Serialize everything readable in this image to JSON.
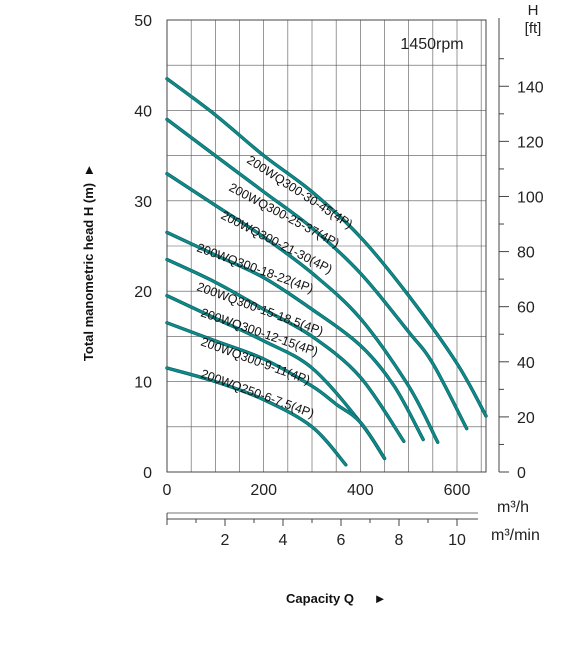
{
  "chart_data": {
    "type": "line",
    "speed_label": "1450rpm",
    "ylabel": "Total manometric head H (m)",
    "xlabel": "Capacity Q",
    "y_left_ticks": [
      "0",
      "10",
      "20",
      "30",
      "40",
      "50"
    ],
    "y_left_range": [
      0,
      50
    ],
    "y_right_ticks": [
      "0",
      "20",
      "40",
      "60",
      "80",
      "100",
      "120",
      "140"
    ],
    "y_right_unit_top": "H",
    "y_right_unit_bottom": "[ft]",
    "x_ticks_m3h": [
      "0",
      "200",
      "400",
      "600"
    ],
    "x_range_m3h": [
      0,
      660
    ],
    "x_unit_m3h": "m³/h",
    "x_ticks_m3min": [
      "2",
      "4",
      "6",
      "8",
      "10"
    ],
    "x_unit_m3min": "m³/min",
    "grid": true,
    "series": [
      {
        "name": "200WQ300-30-45(4P)",
        "x": [
          0,
          100,
          200,
          300,
          400,
          500,
          600,
          660
        ],
        "y": [
          43.5,
          39.5,
          35,
          31,
          26,
          19.5,
          12,
          6.2
        ]
      },
      {
        "name": "200WQ300-25-37(4P)",
        "x": [
          0,
          100,
          200,
          300,
          400,
          500,
          550,
          620
        ],
        "y": [
          39,
          35,
          31,
          27,
          22,
          15.5,
          12,
          4.8
        ]
      },
      {
        "name": "200WQ300-21-30(4P)",
        "x": [
          0,
          100,
          200,
          300,
          400,
          500,
          560
        ],
        "y": [
          33,
          29.5,
          26,
          22,
          17,
          9.5,
          3.3
        ]
      },
      {
        "name": "200WQ300-18-22(4P)",
        "x": [
          0,
          100,
          200,
          300,
          400,
          470,
          530
        ],
        "y": [
          26.5,
          24,
          21.5,
          18,
          14,
          9.5,
          3.6
        ]
      },
      {
        "name": "200WQ300-15-18.5(4P)",
        "x": [
          0,
          100,
          200,
          300,
          400,
          490
        ],
        "y": [
          23.5,
          21,
          18,
          15,
          10.5,
          3.4
        ]
      },
      {
        "name": "200WQ300-12-15(4P)",
        "x": [
          0,
          100,
          200,
          300,
          400,
          450
        ],
        "y": [
          19.5,
          17,
          14.5,
          11.5,
          5.5,
          1.5
        ]
      },
      {
        "name": "200WQ300-9-11(4P)",
        "x": [
          0,
          100,
          200,
          300,
          350,
          400,
          450
        ],
        "y": [
          16.5,
          14.5,
          12.5,
          9.5,
          7.5,
          5.5,
          1.5
        ]
      },
      {
        "name": "200WQ250-6-7.5(4P)",
        "x": [
          0,
          100,
          200,
          300,
          370
        ],
        "y": [
          11.5,
          10,
          8,
          5,
          0.8
        ]
      }
    ]
  },
  "colors": {
    "curve": "#0e8a8a",
    "curve_dark": "#0a5f5f",
    "grid": "#555555",
    "axis": "#444444"
  }
}
